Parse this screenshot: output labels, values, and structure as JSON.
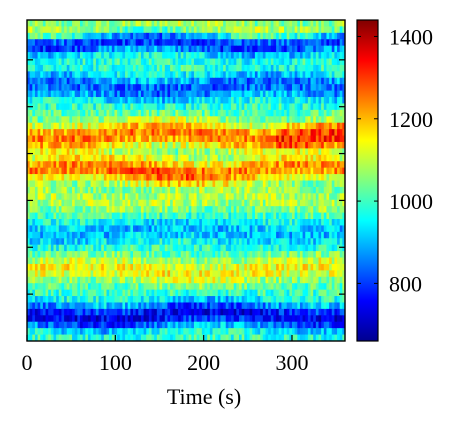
{
  "chart_data": {
    "type": "heatmap",
    "title": "",
    "xlabel": "Time (s)",
    "ylabel": "",
    "xlim": [
      0,
      360
    ],
    "x_ticks": [
      0,
      100,
      200,
      300
    ],
    "y_tick_count": 6,
    "y_tick_labels": [],
    "colorbar": {
      "range": [
        660,
        1440
      ],
      "ticks": [
        800,
        1000,
        1200,
        1400
      ],
      "colormap": "jet"
    },
    "rows": 50,
    "cols": 120,
    "bands": [
      {
        "row_center": 0.03,
        "width": 0.03,
        "value": 1130,
        "note": "faint yellow ridge at top edge"
      },
      {
        "row_center": 0.07,
        "width": 0.035,
        "value": 770,
        "note": "blue band near top"
      },
      {
        "row_center": 0.21,
        "width": 0.04,
        "value": 830,
        "note": "light-blue band"
      },
      {
        "row_center": 0.36,
        "width": 0.045,
        "value": 1250,
        "note": "red/orange high band"
      },
      {
        "row_center": 0.47,
        "width": 0.035,
        "value": 1240,
        "note": "red band, strongest at t≈80-200"
      },
      {
        "row_center": 0.56,
        "width": 0.04,
        "value": 1090,
        "note": "green-yellow band"
      },
      {
        "row_center": 0.66,
        "width": 0.04,
        "value": 900,
        "note": "cyan/blue region"
      },
      {
        "row_center": 0.78,
        "width": 0.04,
        "value": 1150,
        "note": "yellow-orange band"
      },
      {
        "row_center": 0.92,
        "width": 0.04,
        "value": 740,
        "note": "deep blue band at bottom"
      }
    ],
    "colors": {
      "jet": [
        "#00008f",
        "#0000ff",
        "#00ffff",
        "#ffff00",
        "#ff0000",
        "#800000"
      ]
    }
  }
}
